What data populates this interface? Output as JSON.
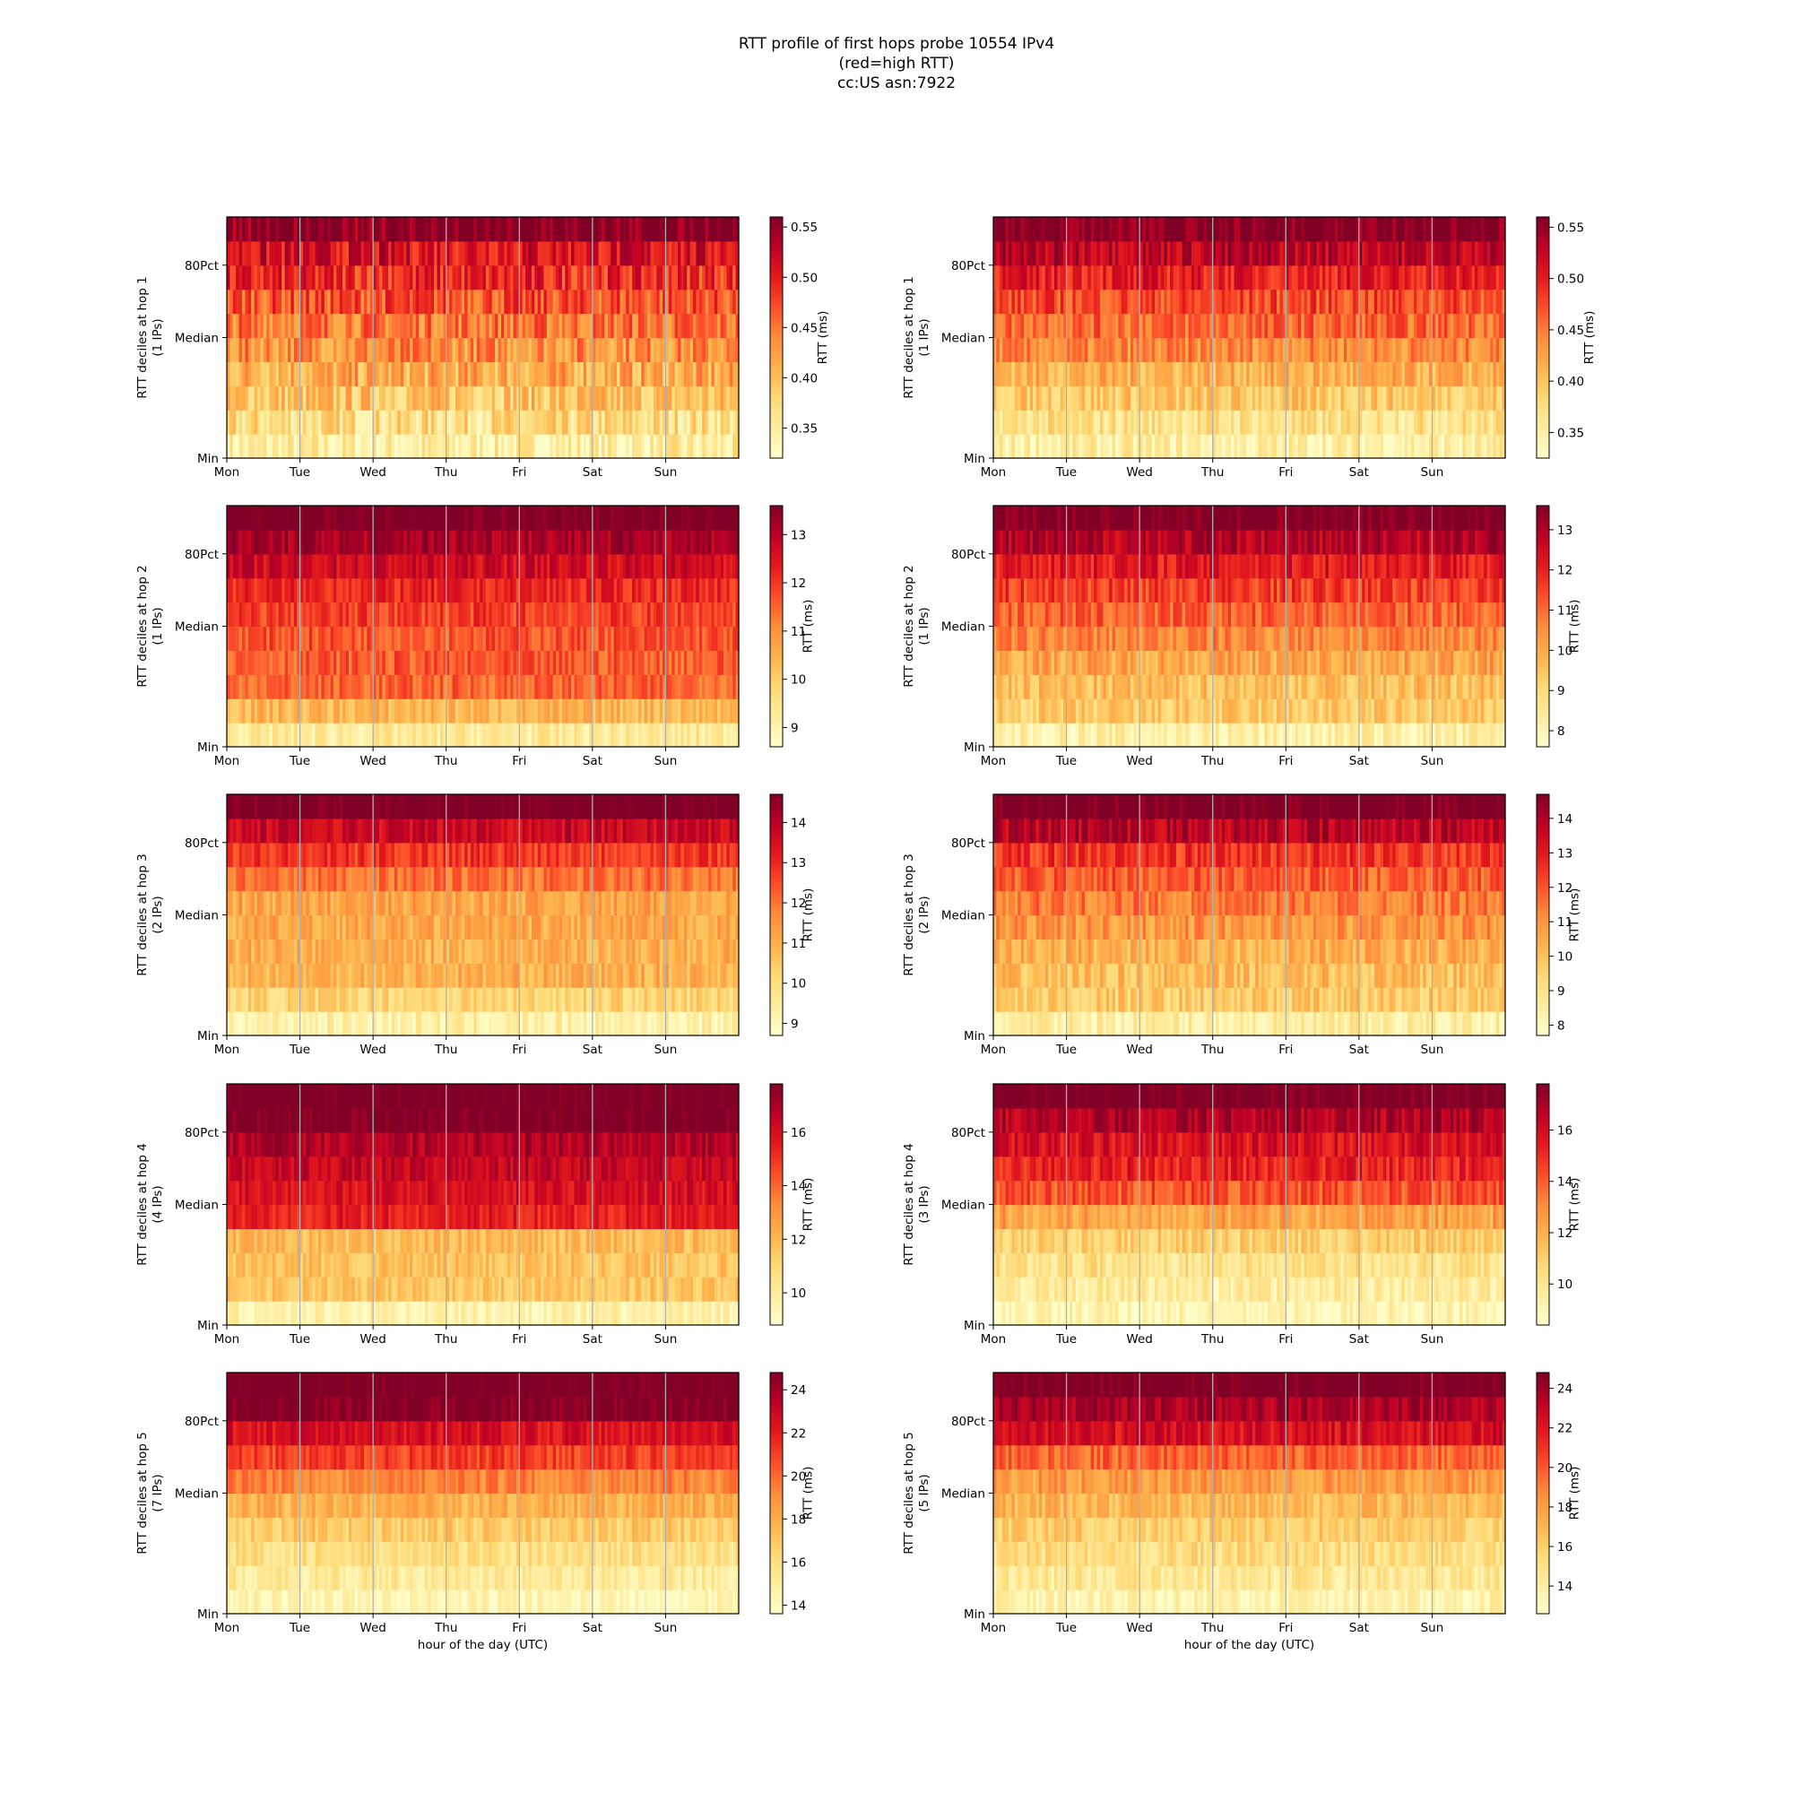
{
  "figure": {
    "title_lines": [
      "RTT profile of first hops probe 10554 IPv4",
      "(red=high RTT)",
      "cc:US asn:7922"
    ]
  },
  "shared": {
    "x_ticks": [
      "Mon",
      "Tue",
      "Wed",
      "Thu",
      "Fri",
      "Sat",
      "Sun"
    ],
    "y_ticks": [
      "Min",
      "Median",
      "80Pct"
    ],
    "colorbar_label": "RTT (ms)",
    "xlabel": "hour of the day (UTC)"
  },
  "colors": {
    "colormap": "YlOrRd",
    "weekday_line": "#b0b0b0",
    "cmap_stops": [
      "#ffffcc",
      "#ffeda0",
      "#fed976",
      "#feb24c",
      "#fd8d3c",
      "#fc4e2a",
      "#e31a1c",
      "#bd0026",
      "#800026"
    ]
  },
  "chart_data": [
    {
      "type": "heatmap",
      "column": "left",
      "hop": 1,
      "ylabel": [
        "RTT deciles at hop 1",
        "(1 IPs)"
      ],
      "xlabel": "",
      "colorbar_label": "RTT (ms)",
      "colorbar_ticks": [
        "0.35",
        "0.40",
        "0.45",
        "0.50",
        "0.55"
      ],
      "vmin": 0.32,
      "vmax": 0.56,
      "decile_rtt": [
        0.345,
        0.37,
        0.395,
        0.415,
        0.435,
        0.45,
        0.47,
        0.49,
        0.51,
        0.56
      ],
      "noise": 0.04
    },
    {
      "type": "heatmap",
      "column": "right",
      "hop": 1,
      "ylabel": [
        "RTT deciles at hop 1",
        "(1 IPs)"
      ],
      "xlabel": "",
      "colorbar_label": "RTT (ms)",
      "colorbar_ticks": [
        "0.35",
        "0.40",
        "0.45",
        "0.50",
        "0.55"
      ],
      "vmin": 0.325,
      "vmax": 0.56,
      "decile_rtt": [
        0.35,
        0.37,
        0.395,
        0.415,
        0.44,
        0.46,
        0.475,
        0.5,
        0.53,
        0.56
      ],
      "noise": 0.03
    },
    {
      "type": "heatmap",
      "column": "left",
      "hop": 2,
      "ylabel": [
        "RTT deciles at hop 2",
        "(1 IPs)"
      ],
      "xlabel": "",
      "colorbar_label": "RTT (ms)",
      "colorbar_ticks": [
        "9",
        "10",
        "11",
        "12",
        "13"
      ],
      "vmin": 8.6,
      "vmax": 13.6,
      "decile_rtt": [
        9.3,
        10.4,
        11.5,
        11.6,
        11.7,
        11.9,
        12.2,
        12.7,
        13.2,
        13.8
      ],
      "noise": 0.5
    },
    {
      "type": "heatmap",
      "column": "right",
      "hop": 2,
      "ylabel": [
        "RTT deciles at hop 2",
        "(1 IPs)"
      ],
      "xlabel": "",
      "colorbar_label": "RTT (ms)",
      "colorbar_ticks": [
        "8",
        "9",
        "10",
        "11",
        "12",
        "13"
      ],
      "vmin": 7.6,
      "vmax": 13.6,
      "decile_rtt": [
        8.2,
        9.3,
        9.6,
        10.1,
        10.6,
        11.1,
        11.6,
        12.2,
        12.9,
        13.8
      ],
      "noise": 0.7
    },
    {
      "type": "heatmap",
      "column": "left",
      "hop": 3,
      "ylabel": [
        "RTT deciles at hop 3",
        "(2 IPs)"
      ],
      "xlabel": "",
      "colorbar_label": "RTT (ms)",
      "colorbar_ticks": [
        "9",
        "10",
        "11",
        "12",
        "13",
        "14"
      ],
      "vmin": 8.7,
      "vmax": 14.7,
      "decile_rtt": [
        9.3,
        10.2,
        11.0,
        11.0,
        11.1,
        11.2,
        12.0,
        12.8,
        13.7,
        15.0
      ],
      "noise": 0.6
    },
    {
      "type": "heatmap",
      "column": "right",
      "hop": 3,
      "ylabel": [
        "RTT deciles at hop 3",
        "(2 IPs)"
      ],
      "xlabel": "",
      "colorbar_label": "RTT (ms)",
      "colorbar_ticks": [
        "8",
        "9",
        "10",
        "11",
        "12",
        "13",
        "14"
      ],
      "vmin": 7.7,
      "vmax": 14.7,
      "decile_rtt": [
        8.5,
        9.7,
        10.0,
        10.4,
        10.9,
        11.4,
        11.9,
        12.5,
        13.8,
        15.0
      ],
      "noise": 0.8
    },
    {
      "type": "heatmap",
      "column": "left",
      "hop": 4,
      "ylabel": [
        "RTT deciles at hop 4",
        "(4 IPs)"
      ],
      "xlabel": "",
      "colorbar_label": "RTT (ms)",
      "colorbar_ticks": [
        "10",
        "12",
        "14",
        "16"
      ],
      "vmin": 8.8,
      "vmax": 17.8,
      "decile_rtt": [
        9.6,
        11.6,
        11.7,
        11.9,
        15.5,
        16.0,
        16.4,
        16.9,
        18.0,
        18.2
      ],
      "noise": 0.8
    },
    {
      "type": "heatmap",
      "column": "right",
      "hop": 4,
      "ylabel": [
        "RTT deciles at hop 4",
        "(3 IPs)"
      ],
      "xlabel": "",
      "colorbar_label": "RTT (ms)",
      "colorbar_ticks": [
        "10",
        "12",
        "14",
        "16"
      ],
      "vmin": 8.4,
      "vmax": 17.8,
      "decile_rtt": [
        9.0,
        9.6,
        10.2,
        11.0,
        12.4,
        14.2,
        15.3,
        15.8,
        16.8,
        18.2
      ],
      "noise": 1.0
    },
    {
      "type": "heatmap",
      "column": "left",
      "hop": 5,
      "ylabel": [
        "RTT deciles at hop 5",
        "(7 IPs)"
      ],
      "xlabel": "hour of the day (UTC)",
      "colorbar_label": "RTT (ms)",
      "colorbar_ticks": [
        "14",
        "16",
        "18",
        "20",
        "22",
        "24"
      ],
      "vmin": 13.6,
      "vmax": 24.8,
      "decile_rtt": [
        14.3,
        15.2,
        15.9,
        16.8,
        17.9,
        19.3,
        21.0,
        22.5,
        24.9,
        25.3
      ],
      "noise": 1.0
    },
    {
      "type": "heatmap",
      "column": "right",
      "hop": 5,
      "ylabel": [
        "RTT deciles at hop 5",
        "(5 IPs)"
      ],
      "xlabel": "hour of the day (UTC)",
      "colorbar_label": "RTT (ms)",
      "colorbar_ticks": [
        "14",
        "16",
        "18",
        "20",
        "22",
        "24"
      ],
      "vmin": 12.6,
      "vmax": 24.8,
      "decile_rtt": [
        13.6,
        14.5,
        15.2,
        16.0,
        16.9,
        18.0,
        19.8,
        22.3,
        23.8,
        25.3
      ],
      "noise": 1.2
    }
  ]
}
